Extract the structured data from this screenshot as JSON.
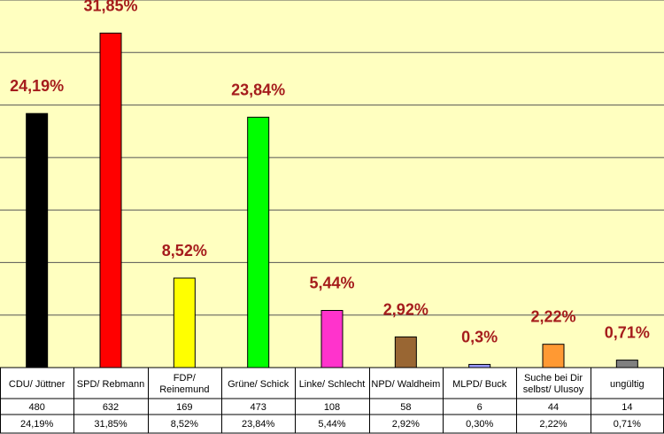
{
  "chart_data": {
    "type": "bar",
    "title": "",
    "xlabel": "",
    "ylabel": "",
    "ylim": [
      0,
      35
    ],
    "grid": true,
    "legend": "none",
    "categories": [
      "CDU/ Jüttner",
      "SPD/ Rebmann",
      "FDP/ Reinemund",
      "Grüne/ Schick",
      "Linke/ Schlecht",
      "NPD/ Waldheim",
      "MLPD/ Buck",
      "Suche bei Dir selbst/ Ulusoy",
      "ungültig"
    ],
    "category_lines": [
      [
        "CDU/ Jüttner"
      ],
      [
        "SPD/ Rebmann"
      ],
      [
        "FDP/",
        "Reinemund"
      ],
      [
        "Grüne/ Schick"
      ],
      [
        "Linke/ Schlecht"
      ],
      [
        "NPD/ Waldheim"
      ],
      [
        "MLPD/ Buck"
      ],
      [
        "Suche bei Dir",
        "selbst/ Ulusoy"
      ],
      [
        "ungültig"
      ]
    ],
    "values": [
      24.19,
      31.85,
      8.52,
      23.84,
      5.44,
      2.92,
      0.3,
      2.22,
      0.71
    ],
    "data_labels": [
      "24,19%",
      "31,85%",
      "8,52%",
      "23,84%",
      "5,44%",
      "2,92%",
      "0,3%",
      "2,22%",
      "0,71%"
    ],
    "votes": [
      "480",
      "632",
      "169",
      "473",
      "108",
      "58",
      "6",
      "44",
      "14"
    ],
    "percent_row": [
      "24,19%",
      "31,85%",
      "8,52%",
      "23,84%",
      "5,44%",
      "2,92%",
      "0,30%",
      "2,22%",
      "0,71%"
    ],
    "colors": [
      "#000000",
      "#ff0000",
      "#ffff00",
      "#00ff00",
      "#ff33cc",
      "#996633",
      "#9999ff",
      "#ff9933",
      "#808080"
    ],
    "plot_background": "#ffffc0",
    "label_color": "#a51c1c"
  }
}
